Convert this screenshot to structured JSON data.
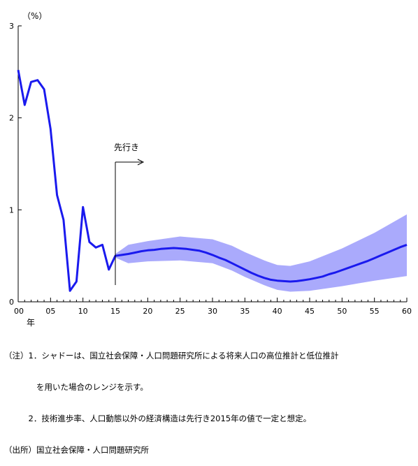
{
  "chart_data": {
    "type": "line",
    "ylabel": "（%）",
    "xunit_label": "年",
    "xlim": [
      0,
      60
    ],
    "ylim": [
      0,
      3
    ],
    "yticks": [
      0,
      1,
      2,
      3
    ],
    "xticks": [
      0,
      5,
      10,
      15,
      20,
      25,
      30,
      35,
      40,
      45,
      50,
      55,
      60
    ],
    "xtick_labels": [
      "00",
      "05",
      "10",
      "15",
      "20",
      "25",
      "30",
      "35",
      "40",
      "45",
      "50",
      "55",
      "60"
    ],
    "grid": false,
    "annotation": {
      "text": "先行き",
      "x": 15
    },
    "series": [
      {
        "kind": "line",
        "color": "#1a1aee",
        "x": [
          0,
          1,
          2,
          3,
          4,
          5,
          6,
          7,
          8,
          9,
          10,
          11,
          12,
          13,
          14,
          15,
          16,
          17,
          18,
          19,
          20,
          21,
          22,
          23,
          24,
          25,
          26,
          27,
          28,
          29,
          30,
          31,
          32,
          33,
          34,
          35,
          36,
          37,
          38,
          39,
          40,
          41,
          42,
          43,
          44,
          45,
          46,
          47,
          48,
          49,
          50,
          51,
          52,
          53,
          54,
          55,
          56,
          57,
          58,
          59,
          60
        ],
        "y": [
          2.52,
          2.14,
          2.39,
          2.41,
          2.31,
          1.88,
          1.16,
          0.89,
          0.12,
          0.22,
          1.03,
          0.65,
          0.59,
          0.62,
          0.35,
          0.5,
          0.51,
          0.52,
          0.535,
          0.55,
          0.56,
          0.565,
          0.575,
          0.58,
          0.585,
          0.58,
          0.575,
          0.565,
          0.555,
          0.535,
          0.51,
          0.48,
          0.455,
          0.42,
          0.385,
          0.35,
          0.315,
          0.285,
          0.26,
          0.24,
          0.23,
          0.225,
          0.22,
          0.225,
          0.235,
          0.245,
          0.26,
          0.275,
          0.3,
          0.32,
          0.345,
          0.37,
          0.395,
          0.42,
          0.445,
          0.475,
          0.505,
          0.535,
          0.565,
          0.595,
          0.62
        ]
      },
      {
        "kind": "range",
        "color": "#aaaafc",
        "x": [
          15,
          17,
          20,
          25,
          30,
          33,
          35,
          38,
          40,
          42,
          45,
          50,
          55,
          60
        ],
        "upper": [
          0.52,
          0.62,
          0.66,
          0.71,
          0.68,
          0.61,
          0.54,
          0.45,
          0.4,
          0.39,
          0.44,
          0.58,
          0.75,
          0.95
        ],
        "lower": [
          0.48,
          0.42,
          0.44,
          0.45,
          0.42,
          0.34,
          0.27,
          0.18,
          0.13,
          0.11,
          0.12,
          0.17,
          0.23,
          0.28
        ]
      }
    ]
  },
  "notes": {
    "lines": [
      "（注）1．シャドーは、国立社会保障・人口問題研究所による将来人口の高位推計と低位推計",
      "　　　　を用いた場合のレンジを示す。",
      "　　　2．技術進歩率、人口動態以外の経済構造は先行き2015年の値で一定と想定。",
      "（出所）国立社会保障・人口問題研究所"
    ]
  }
}
